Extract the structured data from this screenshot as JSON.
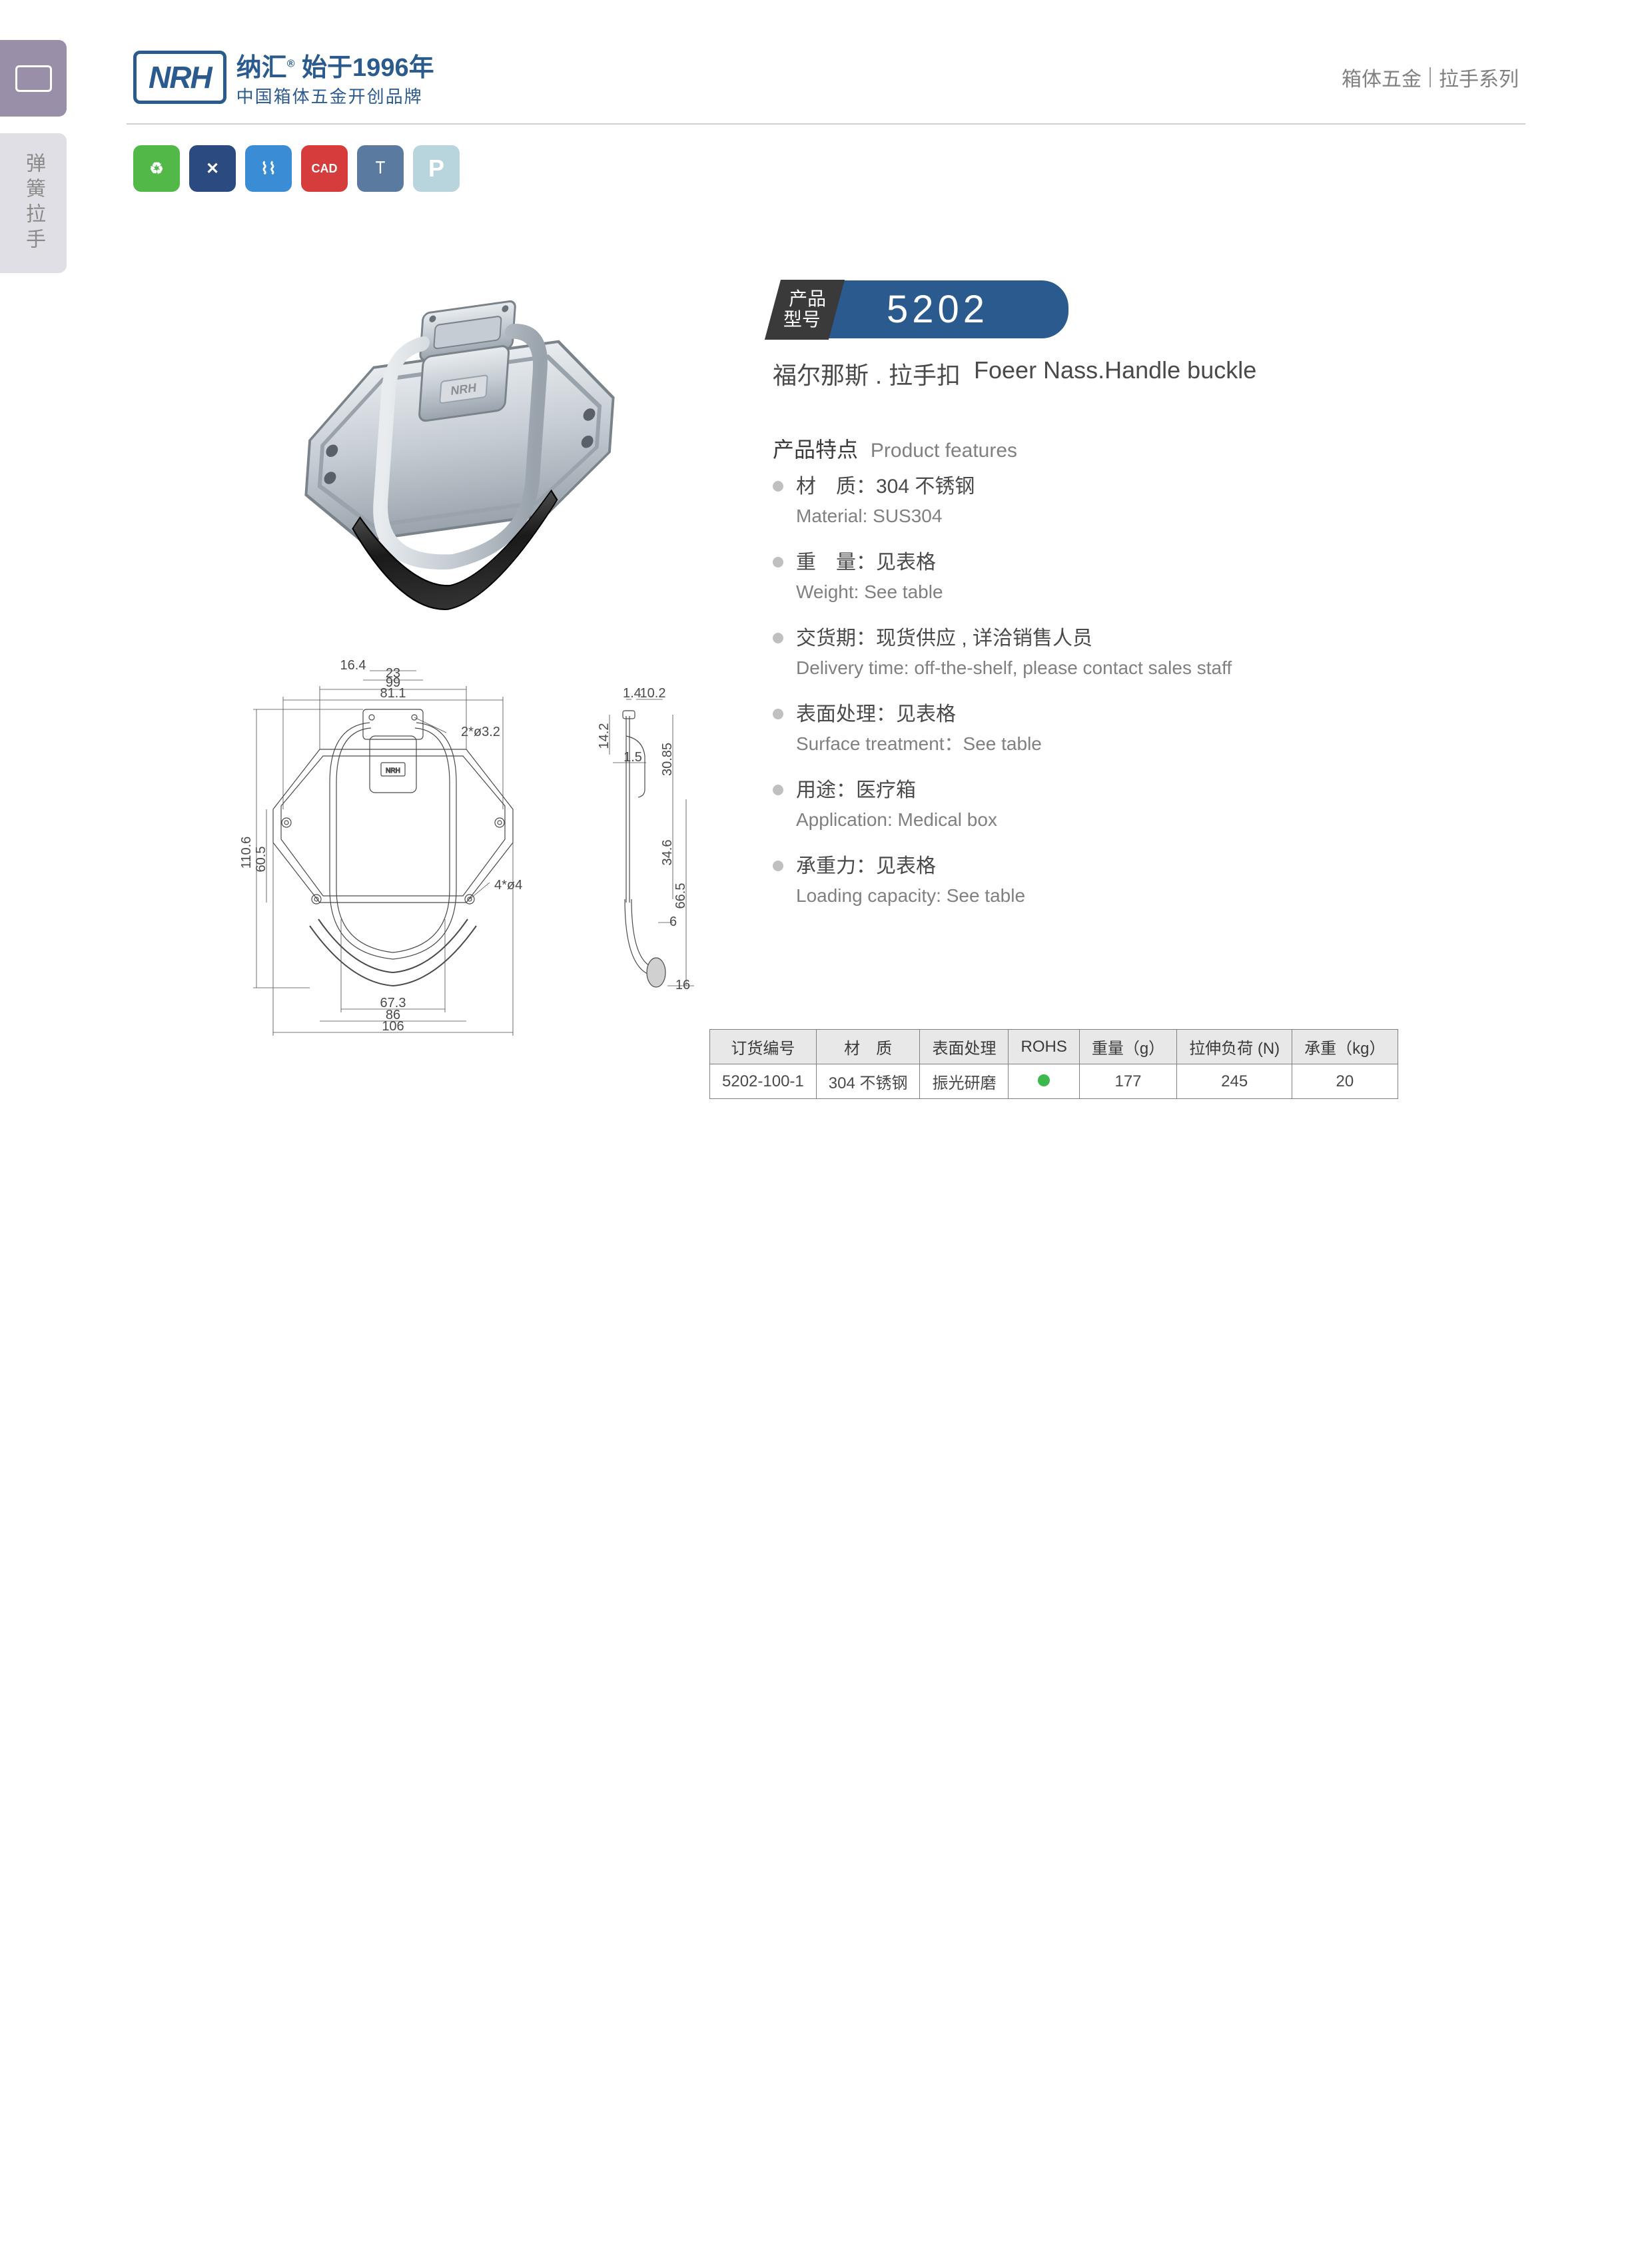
{
  "header": {
    "logo_text": "NRH",
    "brand_cn": "纳汇",
    "brand_year": "始于1996年",
    "brand_sub": "中国箱体五金开创品牌",
    "category": "箱体五金",
    "series": "拉手系列"
  },
  "side_tab_label": "弹簧拉手",
  "cert_badges": [
    {
      "label": "♻",
      "class": "c-green"
    },
    {
      "label": "✕",
      "class": "c-navy"
    },
    {
      "label": "⌇⌇",
      "class": "c-blue"
    },
    {
      "label": "CAD",
      "class": "c-red"
    },
    {
      "label": "⟙",
      "class": "c-teal"
    },
    {
      "label": "P",
      "class": "c-light"
    }
  ],
  "model": {
    "label_line1": "产品",
    "label_line2": "型号",
    "number": "5202"
  },
  "product_name": {
    "cn": "福尔那斯 . 拉手扣",
    "en": "Foeer Nass.Handle buckle"
  },
  "features_title_cn": "产品特点",
  "features_title_en": "Product features",
  "features": [
    {
      "cn": "材　质：304 不锈钢",
      "en": "Material: SUS304"
    },
    {
      "cn": "重　量：见表格",
      "en": "Weight: See table"
    },
    {
      "cn": "交货期：现货供应 , 详洽销售人员",
      "en": "Delivery time: off-the-shelf, please contact sales staff"
    },
    {
      "cn": "表面处理：见表格",
      "en": "Surface treatment：See table"
    },
    {
      "cn": "用途：医疗箱",
      "en": "Application: Medical box"
    },
    {
      "cn": "承重力：见表格",
      "en": "Loading capacity: See table"
    }
  ],
  "table": {
    "headers": [
      "订货编号",
      "材　质",
      "表面处理",
      "ROHS",
      "重量（g）",
      "拉伸负荷 (N)",
      "承重（kg）"
    ],
    "row": {
      "code": "5202-100-1",
      "material": "304 不锈钢",
      "surface": "振光研磨",
      "rohs": "●",
      "weight": "177",
      "tensile": "245",
      "load": "20"
    }
  },
  "dimensions": {
    "front_width_outer": "99",
    "front_width_81": "81.1",
    "front_width_23": "23",
    "front_width_16": "16.4",
    "front_height_110": "110.6",
    "front_height_60": "60.5",
    "front_width_67": "67.3",
    "front_width_86": "86",
    "front_width_106": "106",
    "hole_d3": "2*ø3.2",
    "hole_d4": "4*ø4",
    "side_14": "14.2",
    "side_30": "30.85",
    "side_34": "34.6",
    "side_66": "66.5",
    "side_1_4": "1.4",
    "side_10": "10.2",
    "side_1_5": "1.5",
    "side_6": "6",
    "side_16": "16"
  },
  "colors": {
    "brand": "#2b5a8f",
    "dark": "#3a3a3a",
    "text": "#4a4a4a",
    "muted": "#808080",
    "steel_light": "#d8dce0",
    "steel_mid": "#b5bbc2",
    "steel_dark": "#8a9098",
    "black_grip": "#2a2a2a"
  }
}
